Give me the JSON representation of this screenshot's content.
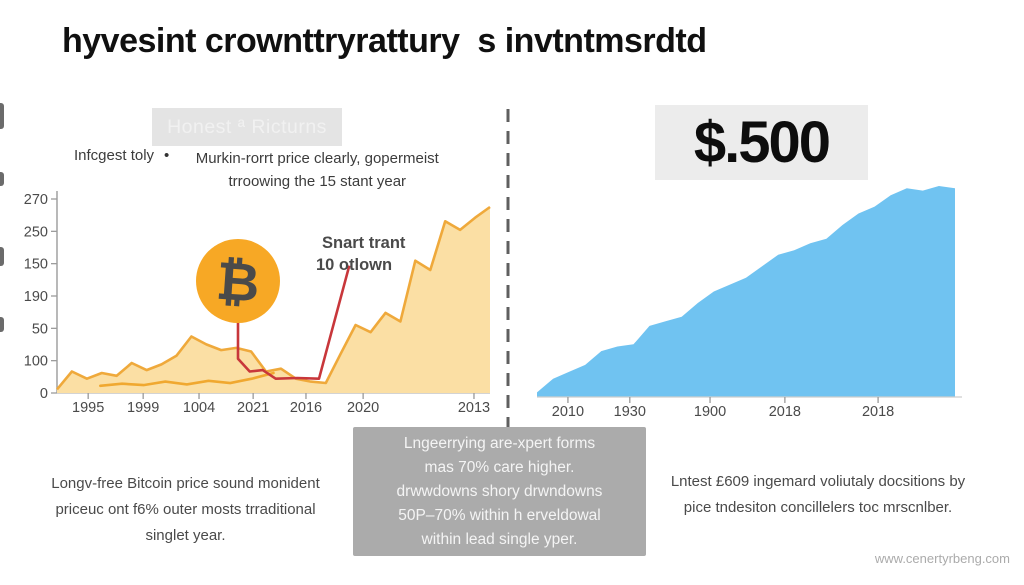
{
  "title": "hyvesint crownttryrattury  s invtntmsrdtd",
  "left": {
    "header_box_label": "Honest ª Ricturns",
    "lead_label": "Infcgest toly",
    "bullet_glyph": "•",
    "bullet_lines": [
      "Murkin-rorrt price clearly, gopermeist",
      "trroowing the 15 stant year"
    ],
    "coin_symbol": "₿",
    "annotation": [
      "Snart trant",
      "10 otlown"
    ],
    "footnote_lines": [
      "Longv-free Bitcoin price sound monident",
      "priceuc ont f6% outer mosts trraditional",
      "singlet year."
    ]
  },
  "right": {
    "value_label": "$.500",
    "footnote_lines": [
      "Lntest £609 ingemard voliutaly docsitions by",
      "pice tndesiton concillelers toc mrscnlber."
    ]
  },
  "center_box_lines": [
    "Lngeerrying are-xpert forms",
    "mas 70% care higher.",
    "drwwdowns shory drwndowns",
    "50P–70% within h erveldowal",
    "within lead single yper."
  ],
  "watermark": "www.cenertyrbeng.com",
  "colors": {
    "area_fill": "#FBDFA4",
    "area_stroke": "#EFA93B",
    "secondary_line": "#F0A830",
    "red_line": "#C8373B",
    "blue_fill": "#70C3F1",
    "coin_fill": "#F7A825",
    "coin_symbol": "#EE8A10",
    "divider": "#5F5F5F",
    "axis": "#9B9B9B",
    "tick": "#999999"
  },
  "chart_data": [
    {
      "type": "area",
      "title": "Left panel — Bitcoin price area chart",
      "xlabel": "",
      "ylabel": "",
      "grid": false,
      "ylim": [
        0,
        270
      ],
      "y_tick_labels": [
        "270",
        "250",
        "150",
        "190",
        "50",
        "100",
        "0"
      ],
      "x_tick_labels": [
        "1995",
        "1999",
        "1004",
        "2021",
        "2016",
        "2020",
        "2013"
      ],
      "x_tick_pos": [
        0.072,
        0.199,
        0.328,
        0.453,
        0.575,
        0.707,
        0.963
      ],
      "series": [
        {
          "name": "bitcoin-price-area",
          "type": "area",
          "values": [
            5,
            30,
            20,
            28,
            24,
            42,
            32,
            40,
            52,
            79,
            68,
            60,
            63,
            58,
            30,
            34,
            20,
            16,
            14,
            55,
            95,
            85,
            112,
            100,
            185,
            172,
            240,
            228,
            245,
            260
          ]
        },
        {
          "name": "secondary-price-line",
          "type": "line",
          "x": [
            0.1,
            0.15,
            0.2,
            0.25,
            0.3,
            0.35,
            0.4,
            0.45,
            0.5
          ],
          "values": [
            10,
            13,
            11,
            16,
            12,
            17,
            14,
            20,
            28
          ]
        },
        {
          "name": "red-trend-line",
          "type": "line",
          "x": [
            0.418,
            0.418,
            0.445,
            0.475,
            0.505,
            0.555,
            0.605,
            0.675
          ],
          "values": [
            99,
            48,
            30,
            32,
            20,
            21,
            20,
            178
          ]
        }
      ],
      "annotation": "Snart trant 10 otlown"
    },
    {
      "type": "area",
      "title": "Right panel — blue growth area chart",
      "xlabel": "",
      "ylabel": "",
      "grid": false,
      "ylim": [
        0,
        95
      ],
      "x_tick_labels": [
        "2010",
        "1930",
        "1900",
        "2018",
        "2018"
      ],
      "x_tick_pos": [
        0.074,
        0.222,
        0.414,
        0.593,
        0.816
      ],
      "series": [
        {
          "name": "growth-area",
          "type": "area",
          "values": [
            2,
            8,
            11,
            14,
            20,
            22,
            23,
            31,
            33,
            35,
            41,
            46,
            49,
            52,
            57,
            62,
            64,
            67,
            69,
            75,
            80,
            83,
            88,
            91,
            90,
            92,
            91
          ]
        }
      ]
    }
  ]
}
